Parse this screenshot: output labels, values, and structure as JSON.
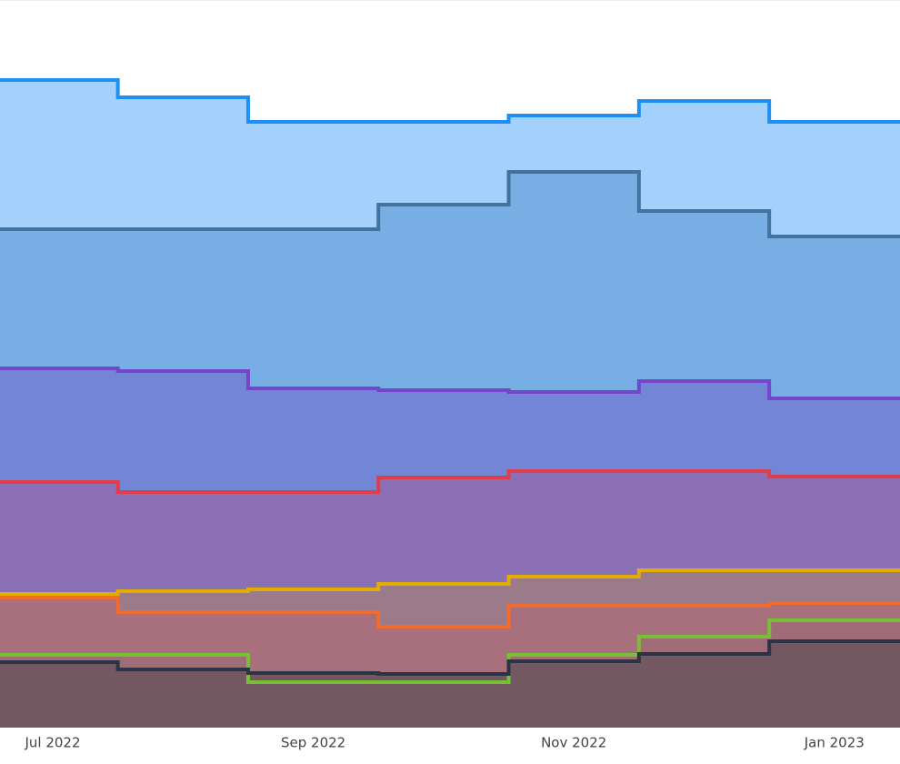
{
  "chart_data": {
    "type": "step-area",
    "categories": [
      "Jul 2022",
      null,
      "Sep 2022",
      null,
      "Nov 2022",
      null,
      "Jan 2023"
    ],
    "ylim": [
      0,
      800
    ],
    "series": [
      {
        "color": "#1e8ff5",
        "fill": "#a3d1fb",
        "values": [
          712,
          693,
          666,
          666,
          673,
          689,
          666
        ]
      },
      {
        "color": "#44729f",
        "fill": "#77afe5",
        "values": [
          548,
          548,
          548,
          575,
          611,
          568,
          540
        ]
      },
      {
        "color": "#7446cc",
        "fill": "#7386d5",
        "values": [
          395,
          392,
          373,
          371,
          369,
          381,
          362
        ]
      },
      {
        "color": "#de3d4a",
        "fill": "#8b70b5",
        "values": [
          270,
          259,
          259,
          275,
          282,
          282,
          276
        ]
      },
      {
        "color": "#e3ad00",
        "fill": "#9b7a8a",
        "values": [
          147,
          150,
          152,
          158,
          166,
          173,
          173
        ]
      },
      {
        "color": "#ef6b2e",
        "fill": "#a86f7c",
        "values": [
          143,
          127,
          127,
          111,
          134,
          134,
          137
        ]
      },
      {
        "color": "#77bf35",
        "fill": "#a06c78",
        "values": [
          80,
          80,
          50,
          50,
          80,
          100,
          118
        ]
      },
      {
        "color": "#2c3345",
        "fill": "#735862",
        "values": [
          72,
          64,
          60,
          59,
          73,
          81,
          95
        ]
      }
    ]
  }
}
